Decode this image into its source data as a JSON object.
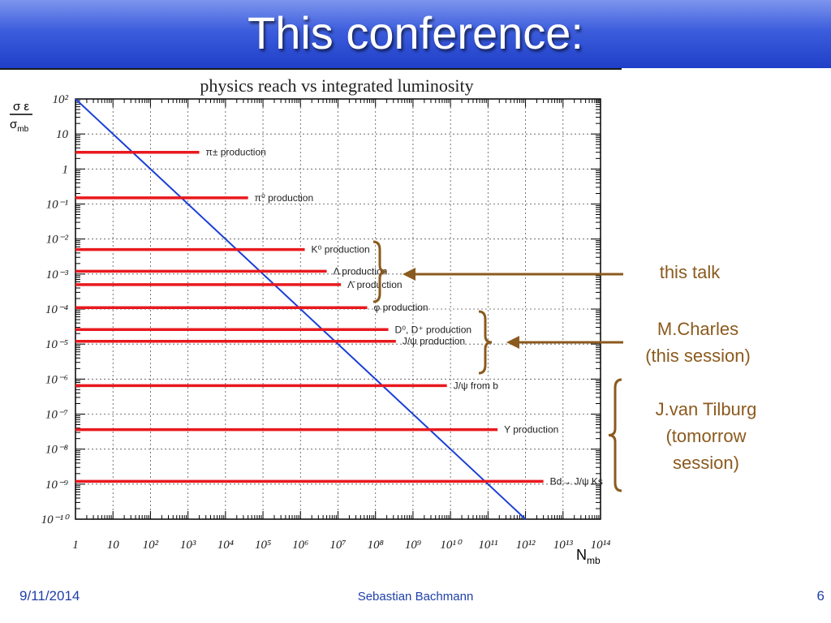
{
  "slide": {
    "title": "This conference:",
    "date": "9/11/2014",
    "author": "Sebastian Bachmann",
    "page_number": "6"
  },
  "colors": {
    "title_bar": "#3c5ddc",
    "bars": "#e8191e",
    "diagonal": "#1a3fd6",
    "annotation": "#8b5a1e",
    "footer": "#1f3fa8"
  },
  "chart_data": {
    "type": "bar",
    "orientation": "horizontal",
    "title": "physics reach vs integrated luminosity",
    "ylabel": "σ ε / σmb",
    "xlabel": "Nmb",
    "x_scale": "log",
    "y_scale": "log",
    "xlim": [
      1,
      100000000000000.0
    ],
    "ylim": [
      1e-10,
      100
    ],
    "grid": true,
    "x_ticks": [
      {
        "value": 1,
        "label": "1"
      },
      {
        "value": 10,
        "label": "10"
      },
      {
        "value": 100.0,
        "label": "10²"
      },
      {
        "value": 1000.0,
        "label": "10³"
      },
      {
        "value": 10000.0,
        "label": "10⁴"
      },
      {
        "value": 100000.0,
        "label": "10⁵"
      },
      {
        "value": 1000000.0,
        "label": "10⁶"
      },
      {
        "value": 10000000.0,
        "label": "10⁷"
      },
      {
        "value": 100000000.0,
        "label": "10⁸"
      },
      {
        "value": 1000000000.0,
        "label": "10⁹"
      },
      {
        "value": 10000000000.0,
        "label": "10¹⁰"
      },
      {
        "value": 100000000000.0,
        "label": "10¹¹"
      },
      {
        "value": 1000000000000.0,
        "label": "10¹²"
      },
      {
        "value": 10000000000000.0,
        "label": "10¹³"
      },
      {
        "value": 100000000000000.0,
        "label": "10¹⁴"
      }
    ],
    "y_ticks": [
      {
        "value": 100,
        "label": "10²"
      },
      {
        "value": 10,
        "label": "10"
      },
      {
        "value": 1,
        "label": "1"
      },
      {
        "value": 0.1,
        "label": "10⁻¹"
      },
      {
        "value": 0.01,
        "label": "10⁻²"
      },
      {
        "value": 0.001,
        "label": "10⁻³"
      },
      {
        "value": 0.0001,
        "label": "10⁻⁴"
      },
      {
        "value": 1e-05,
        "label": "10⁻⁵"
      },
      {
        "value": 1e-06,
        "label": "10⁻⁶"
      },
      {
        "value": 1e-07,
        "label": "10⁻⁷"
      },
      {
        "value": 1e-08,
        "label": "10⁻⁸"
      },
      {
        "value": 1e-09,
        "label": "10⁻⁹"
      },
      {
        "value": 1e-10,
        "label": "10⁻¹⁰"
      }
    ],
    "diagonal": {
      "x": [
        1,
        1000000000000.0
      ],
      "y": [
        100,
        1e-10
      ]
    },
    "bars": [
      {
        "label": "π± production",
        "y": 3.0,
        "x_end": 2000.0
      },
      {
        "label": "π⁰ production",
        "y": 0.15,
        "x_end": 40000.0
      },
      {
        "label": "K⁰ production",
        "y": 0.005,
        "x_end": 1300000.0
      },
      {
        "label": "Λ production",
        "y": 0.0012,
        "x_end": 5000000.0
      },
      {
        "label": "Λ̄ production",
        "y": 0.0005,
        "x_end": 12000000.0
      },
      {
        "label": "φ production",
        "y": 0.00011,
        "x_end": 60000000.0
      },
      {
        "label": "D⁰, D⁺ production",
        "y": 2.6e-05,
        "x_end": 220000000.0
      },
      {
        "label": "J/ψ production",
        "y": 1.2e-05,
        "x_end": 350000000.0
      },
      {
        "label": "J/ψ from b",
        "y": 6.5e-07,
        "x_end": 8000000000.0
      },
      {
        "label": "Υ production",
        "y": 3.6e-08,
        "x_end": 180000000000.0
      },
      {
        "label": "Bd→ J/ψ Ks",
        "y": 1.2e-09,
        "x_end": 3000000000000.0
      }
    ]
  },
  "annotations": {
    "this_talk": "this talk",
    "charles_1": "M.Charles",
    "charles_2": "(this session)",
    "tilburg_1": "J.van Tilburg",
    "tilburg_2": "(tomorrow",
    "tilburg_3": "session)"
  }
}
